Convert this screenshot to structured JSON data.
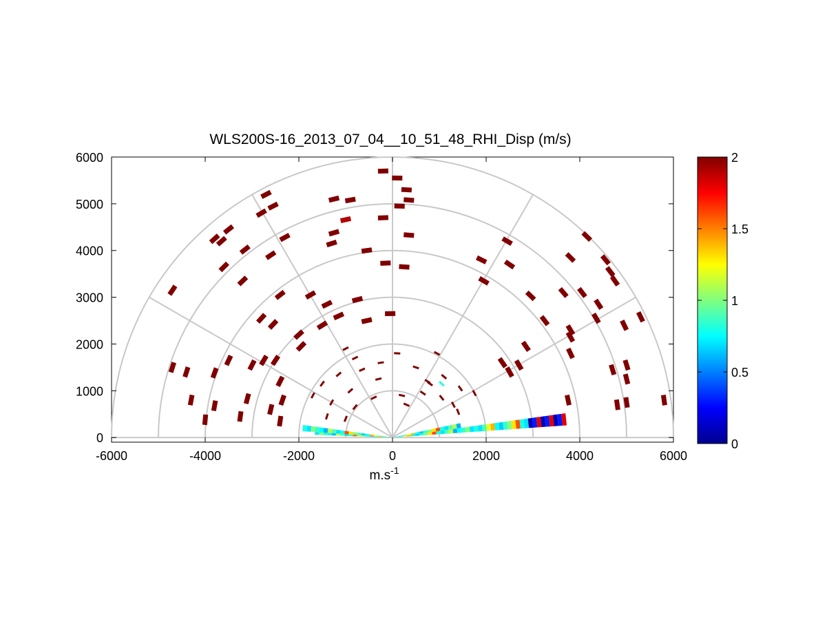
{
  "chart_data": {
    "type": "scatter",
    "subtype": "polar-rhi-half-circle",
    "title": "WLS200S-16_2013_07_04__10_51_48_RHI_Disp (m/s)",
    "xlabel": "m.s",
    "xlabel_superscript": "-1",
    "ylabel": "",
    "xlim": [
      -6000,
      6000
    ],
    "ylim": [
      -100,
      6000
    ],
    "xticks": [
      "-6000",
      "-4000",
      "-2000",
      "0",
      "2000",
      "4000",
      "6000"
    ],
    "yticks": [
      "0",
      "1000",
      "2000",
      "3000",
      "4000",
      "5000",
      "6000"
    ],
    "grid_rings": [
      1000,
      2000,
      3000,
      4000,
      5000,
      6000
    ],
    "grid_spokes_deg": [
      0,
      30,
      60,
      90,
      120,
      150,
      180
    ],
    "grid": true,
    "colorbar": {
      "colormap": "jet",
      "range": [
        0,
        2
      ],
      "ticks": [
        "0",
        "0.5",
        "1",
        "1.5",
        "2"
      ]
    },
    "points": [
      {
        "x": -200,
        "y": 5700,
        "v": 2
      },
      {
        "x": 100,
        "y": 5550,
        "v": 2
      },
      {
        "x": 300,
        "y": 5300,
        "v": 2
      },
      {
        "x": 350,
        "y": 5080,
        "v": 2
      },
      {
        "x": 150,
        "y": 4950,
        "v": 2
      },
      {
        "x": -1250,
        "y": 5100,
        "v": 2
      },
      {
        "x": -900,
        "y": 5080,
        "v": 2
      },
      {
        "x": -2700,
        "y": 5200,
        "v": 2
      },
      {
        "x": -2550,
        "y": 4950,
        "v": 2
      },
      {
        "x": -2800,
        "y": 4800,
        "v": 2
      },
      {
        "x": -1000,
        "y": 4660,
        "v": 1.9
      },
      {
        "x": -200,
        "y": 4700,
        "v": 2
      },
      {
        "x": -3500,
        "y": 4450,
        "v": 2
      },
      {
        "x": -3800,
        "y": 4250,
        "v": 2
      },
      {
        "x": -3650,
        "y": 4200,
        "v": 2
      },
      {
        "x": -2300,
        "y": 4280,
        "v": 2
      },
      {
        "x": -1250,
        "y": 4380,
        "v": 2
      },
      {
        "x": -1300,
        "y": 4150,
        "v": 2
      },
      {
        "x": 350,
        "y": 4330,
        "v": 2
      },
      {
        "x": -3150,
        "y": 4020,
        "v": 2
      },
      {
        "x": -2600,
        "y": 3900,
        "v": 2
      },
      {
        "x": -550,
        "y": 4000,
        "v": 2
      },
      {
        "x": -3600,
        "y": 3650,
        "v": 2
      },
      {
        "x": -3200,
        "y": 3350,
        "v": 2
      },
      {
        "x": -150,
        "y": 3730,
        "v": 2
      },
      {
        "x": 250,
        "y": 3650,
        "v": 2
      },
      {
        "x": -4700,
        "y": 3150,
        "v": 2
      },
      {
        "x": -2400,
        "y": 3050,
        "v": 2
      },
      {
        "x": -1750,
        "y": 3050,
        "v": 2
      },
      {
        "x": -1400,
        "y": 2850,
        "v": 2
      },
      {
        "x": -750,
        "y": 2950,
        "v": 2
      },
      {
        "x": -50,
        "y": 2650,
        "v": 2
      },
      {
        "x": -2800,
        "y": 2550,
        "v": 2
      },
      {
        "x": -2550,
        "y": 2420,
        "v": 2
      },
      {
        "x": -1500,
        "y": 2400,
        "v": 2
      },
      {
        "x": -1150,
        "y": 2600,
        "v": 2
      },
      {
        "x": -550,
        "y": 2500,
        "v": 2
      },
      {
        "x": -2000,
        "y": 2200,
        "v": 2
      },
      {
        "x": -1950,
        "y": 1950,
        "v": 2
      },
      {
        "x": -3500,
        "y": 1650,
        "v": 2
      },
      {
        "x": -2750,
        "y": 1650,
        "v": 2
      },
      {
        "x": -2500,
        "y": 1650,
        "v": 2
      },
      {
        "x": -3000,
        "y": 1550,
        "v": 2
      },
      {
        "x": -4700,
        "y": 1500,
        "v": 2
      },
      {
        "x": -4400,
        "y": 1400,
        "v": 2
      },
      {
        "x": -3800,
        "y": 1380,
        "v": 2
      },
      {
        "x": -2400,
        "y": 1200,
        "v": 2
      },
      {
        "x": -3100,
        "y": 830,
        "v": 2
      },
      {
        "x": -2350,
        "y": 800,
        "v": 2
      },
      {
        "x": -4300,
        "y": 800,
        "v": 2
      },
      {
        "x": -3800,
        "y": 680,
        "v": 2
      },
      {
        "x": -2600,
        "y": 600,
        "v": 2
      },
      {
        "x": -3250,
        "y": 450,
        "v": 2
      },
      {
        "x": -4000,
        "y": 380,
        "v": 2
      },
      {
        "x": -2400,
        "y": 350,
        "v": 2
      },
      {
        "x": 1900,
        "y": 3800,
        "v": 2
      },
      {
        "x": 2450,
        "y": 4200,
        "v": 2
      },
      {
        "x": 2500,
        "y": 3700,
        "v": 2
      },
      {
        "x": 1950,
        "y": 3350,
        "v": 2
      },
      {
        "x": 2950,
        "y": 3030,
        "v": 2
      },
      {
        "x": 3250,
        "y": 2500,
        "v": 2
      },
      {
        "x": 3800,
        "y": 3850,
        "v": 2
      },
      {
        "x": 4150,
        "y": 4300,
        "v": 2
      },
      {
        "x": 4550,
        "y": 3800,
        "v": 2
      },
      {
        "x": 4650,
        "y": 3550,
        "v": 2
      },
      {
        "x": 4750,
        "y": 3350,
        "v": 2
      },
      {
        "x": 3650,
        "y": 3100,
        "v": 2
      },
      {
        "x": 4050,
        "y": 3100,
        "v": 2
      },
      {
        "x": 4400,
        "y": 2850,
        "v": 2
      },
      {
        "x": 4350,
        "y": 2550,
        "v": 2
      },
      {
        "x": 3800,
        "y": 2300,
        "v": 2
      },
      {
        "x": 3800,
        "y": 2150,
        "v": 2
      },
      {
        "x": 4950,
        "y": 2400,
        "v": 2
      },
      {
        "x": 5300,
        "y": 2580,
        "v": 2
      },
      {
        "x": 2850,
        "y": 1950,
        "v": 2
      },
      {
        "x": 3800,
        "y": 1800,
        "v": 2
      },
      {
        "x": 2350,
        "y": 1600,
        "v": 2
      },
      {
        "x": 2700,
        "y": 1550,
        "v": 2
      },
      {
        "x": 2500,
        "y": 1400,
        "v": 2
      },
      {
        "x": 4700,
        "y": 1450,
        "v": 2
      },
      {
        "x": 5000,
        "y": 1550,
        "v": 2
      },
      {
        "x": 5000,
        "y": 1250,
        "v": 2
      },
      {
        "x": 3750,
        "y": 800,
        "v": 2
      },
      {
        "x": 5000,
        "y": 750,
        "v": 2
      },
      {
        "x": 4800,
        "y": 700,
        "v": 2
      },
      {
        "x": 5800,
        "y": 800,
        "v": 2
      },
      {
        "x": 1750,
        "y": 950,
        "v": 2
      },
      {
        "x": 1450,
        "y": 1050,
        "v": 2
      },
      {
        "x": 1100,
        "y": 1300,
        "v": 2
      },
      {
        "x": 950,
        "y": 1800,
        "v": 2
      },
      {
        "x": 500,
        "y": 1500,
        "v": 2
      },
      {
        "x": 100,
        "y": 1800,
        "v": 2
      },
      {
        "x": -250,
        "y": 1600,
        "v": 2
      },
      {
        "x": -650,
        "y": 1450,
        "v": 2
      },
      {
        "x": -1150,
        "y": 1350,
        "v": 2
      },
      {
        "x": -1500,
        "y": 1150,
        "v": 2
      },
      {
        "x": -900,
        "y": 1000,
        "v": 2
      },
      {
        "x": -400,
        "y": 850,
        "v": 2
      },
      {
        "x": 200,
        "y": 900,
        "v": 2
      },
      {
        "x": 650,
        "y": 950,
        "v": 2
      },
      {
        "x": 1050,
        "y": 850,
        "v": 2
      },
      {
        "x": -1700,
        "y": 900,
        "v": 2
      },
      {
        "x": -1300,
        "y": 750,
        "v": 2
      },
      {
        "x": -800,
        "y": 650,
        "v": 2
      },
      {
        "x": 300,
        "y": 700,
        "v": 2
      },
      {
        "x": 1300,
        "y": 700,
        "v": 2
      },
      {
        "x": -1400,
        "y": 450,
        "v": 2
      },
      {
        "x": -1000,
        "y": 400,
        "v": 2
      },
      {
        "x": 1400,
        "y": 550,
        "v": 2
      },
      {
        "x": 800,
        "y": 1150,
        "v": 2
      },
      {
        "x": -300,
        "y": 1250,
        "v": 2
      },
      {
        "x": -800,
        "y": 1700,
        "v": 2
      },
      {
        "x": -1000,
        "y": 1900,
        "v": 2
      },
      {
        "x": 750,
        "y": 1200,
        "v": 2
      },
      {
        "x": 1050,
        "y": 1150,
        "v": 0.8
      }
    ],
    "low_beam_values_sample": [
      0.8,
      0.7,
      0.9,
      1.2,
      1.4,
      0.75,
      0.65,
      0.85,
      1.0,
      1.3,
      1.6,
      0.8,
      0.7,
      0.9,
      1.1,
      0.6,
      0.75,
      0.85,
      1.0,
      0.7
    ]
  }
}
